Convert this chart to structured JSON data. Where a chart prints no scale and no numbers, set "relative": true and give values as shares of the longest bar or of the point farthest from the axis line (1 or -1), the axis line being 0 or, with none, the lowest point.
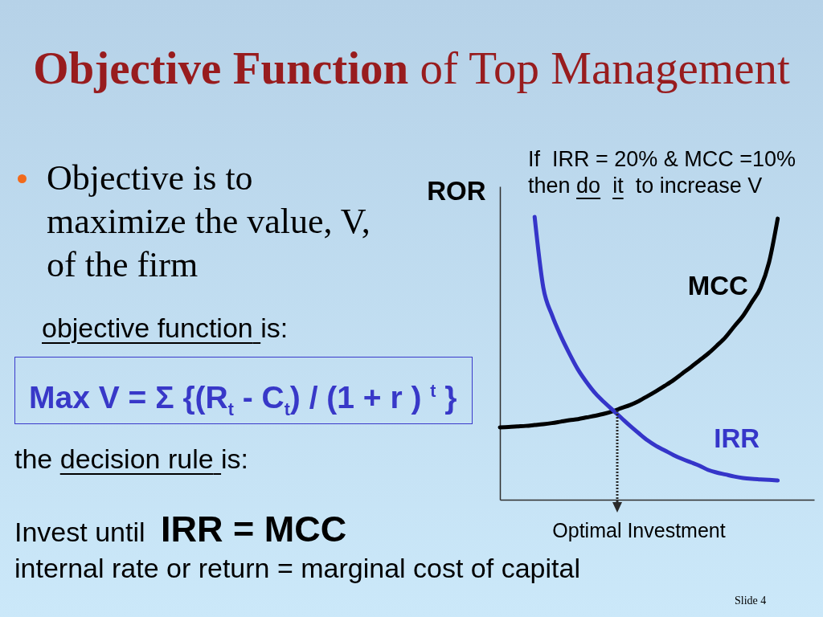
{
  "chart_data": {
    "type": "line",
    "title": "Objective Function of Top Management",
    "ylabel": "ROR",
    "relative": true,
    "categories": [
      null,
      null,
      null,
      null,
      null,
      null,
      null,
      null,
      null,
      null,
      null,
      null,
      null,
      null,
      null,
      null,
      null,
      null,
      null,
      null,
      null,
      null,
      null,
      null,
      null,
      null,
      null,
      null,
      null,
      null,
      null,
      null,
      null
    ],
    "series": [
      {
        "name": "MCC",
        "color": "#000000",
        "values": [
          0.256,
          0.257,
          0.259,
          0.261,
          0.264,
          0.267,
          0.271,
          0.276,
          0.281,
          0.285,
          0.291,
          0.297,
          0.304,
          0.313,
          0.324,
          0.335,
          0.349,
          0.366,
          0.384,
          0.403,
          0.423,
          0.446,
          0.469,
          0.493,
          0.517,
          0.545,
          0.575,
          0.613,
          0.65,
          0.698,
          0.748,
          0.839,
          0.994
        ]
      },
      {
        "name": "IRR",
        "color": "#3535c9",
        "values": [
          null,
          null,
          null,
          null,
          1,
          0.75,
          0.653,
          0.58,
          0.517,
          0.46,
          0.415,
          0.376,
          0.345,
          0.317,
          0.289,
          0.261,
          0.235,
          0.21,
          0.19,
          0.174,
          0.158,
          0.144,
          0.132,
          0.12,
          0.105,
          0.096,
          0.089,
          0.082,
          0.077,
          0.074,
          0.072,
          0.07,
          0.068
        ]
      }
    ],
    "annotations": [
      "Objective is to maximize the value, V, of the firm",
      "objective function",
      "is:",
      "Max V = Σ {(R$_{t}$ - C$_{t}$) / (1 + r ) $^{t}$ }",
      "the",
      "decision rule",
      "is:",
      "Invest until",
      "IRR = MCC",
      "internal rate or return = marginal cost of capital",
      "If  IRR = 20% & MCC =10%",
      "then",
      "do",
      "it",
      "to increase V",
      "Optimal Investment",
      "Slide 4"
    ]
  }
}
